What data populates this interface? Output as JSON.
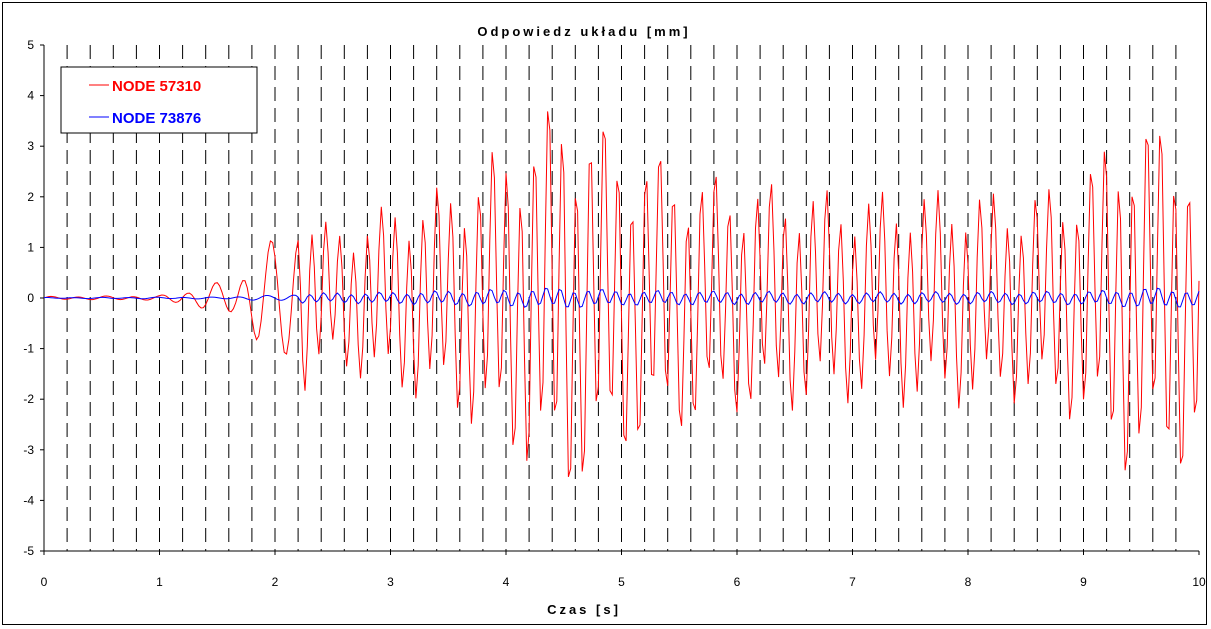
{
  "chart_data": {
    "type": "line",
    "title": "Odpowiedz  układu  [mm]",
    "xlabel": "Czas  [s]",
    "ylabel": "",
    "xlim": [
      0,
      10
    ],
    "ylim": [
      -5,
      5
    ],
    "x_ticks": [
      "0",
      "1",
      "2",
      "3",
      "4",
      "5",
      "6",
      "7",
      "8",
      "9",
      "10"
    ],
    "y_ticks": [
      "5",
      "4",
      "3",
      "2",
      "1",
      "0",
      "-1",
      "-2",
      "-3",
      "-4",
      "-5"
    ],
    "grid": "vertical-dashed",
    "legend": "top-left",
    "series": [
      {
        "name": "NODE 57310",
        "color": "#ff0000",
        "sample_step_s": 0.02,
        "envelope_t": [
          0,
          1.0,
          1.3,
          1.65,
          1.85,
          2.0,
          2.2,
          2.5,
          3.0,
          3.5,
          4.0,
          4.5,
          4.7,
          5.0,
          5.5,
          6.0,
          6.5,
          7.0,
          7.5,
          8.0,
          8.5,
          9.0,
          9.3,
          9.6,
          9.8,
          10.0
        ],
        "envelope_a": [
          0.03,
          0.05,
          0.2,
          0.4,
          1.0,
          1.2,
          2.0,
          1.4,
          1.9,
          2.3,
          3.2,
          4.2,
          3.9,
          3.3,
          2.8,
          2.4,
          2.3,
          2.1,
          2.2,
          2.2,
          2.1,
          2.6,
          3.6,
          3.7,
          3.7,
          3.2
        ]
      },
      {
        "name": "NODE 73876",
        "color": "#0000ff",
        "sample_step_s": 0.02,
        "envelope_t": [
          0,
          1.5,
          2.0,
          2.2,
          3.0,
          4.5,
          5.0,
          7.0,
          9.0,
          9.6,
          10.0
        ],
        "envelope_a": [
          0.01,
          0.02,
          0.06,
          0.1,
          0.12,
          0.22,
          0.16,
          0.12,
          0.14,
          0.22,
          0.18
        ]
      }
    ]
  }
}
